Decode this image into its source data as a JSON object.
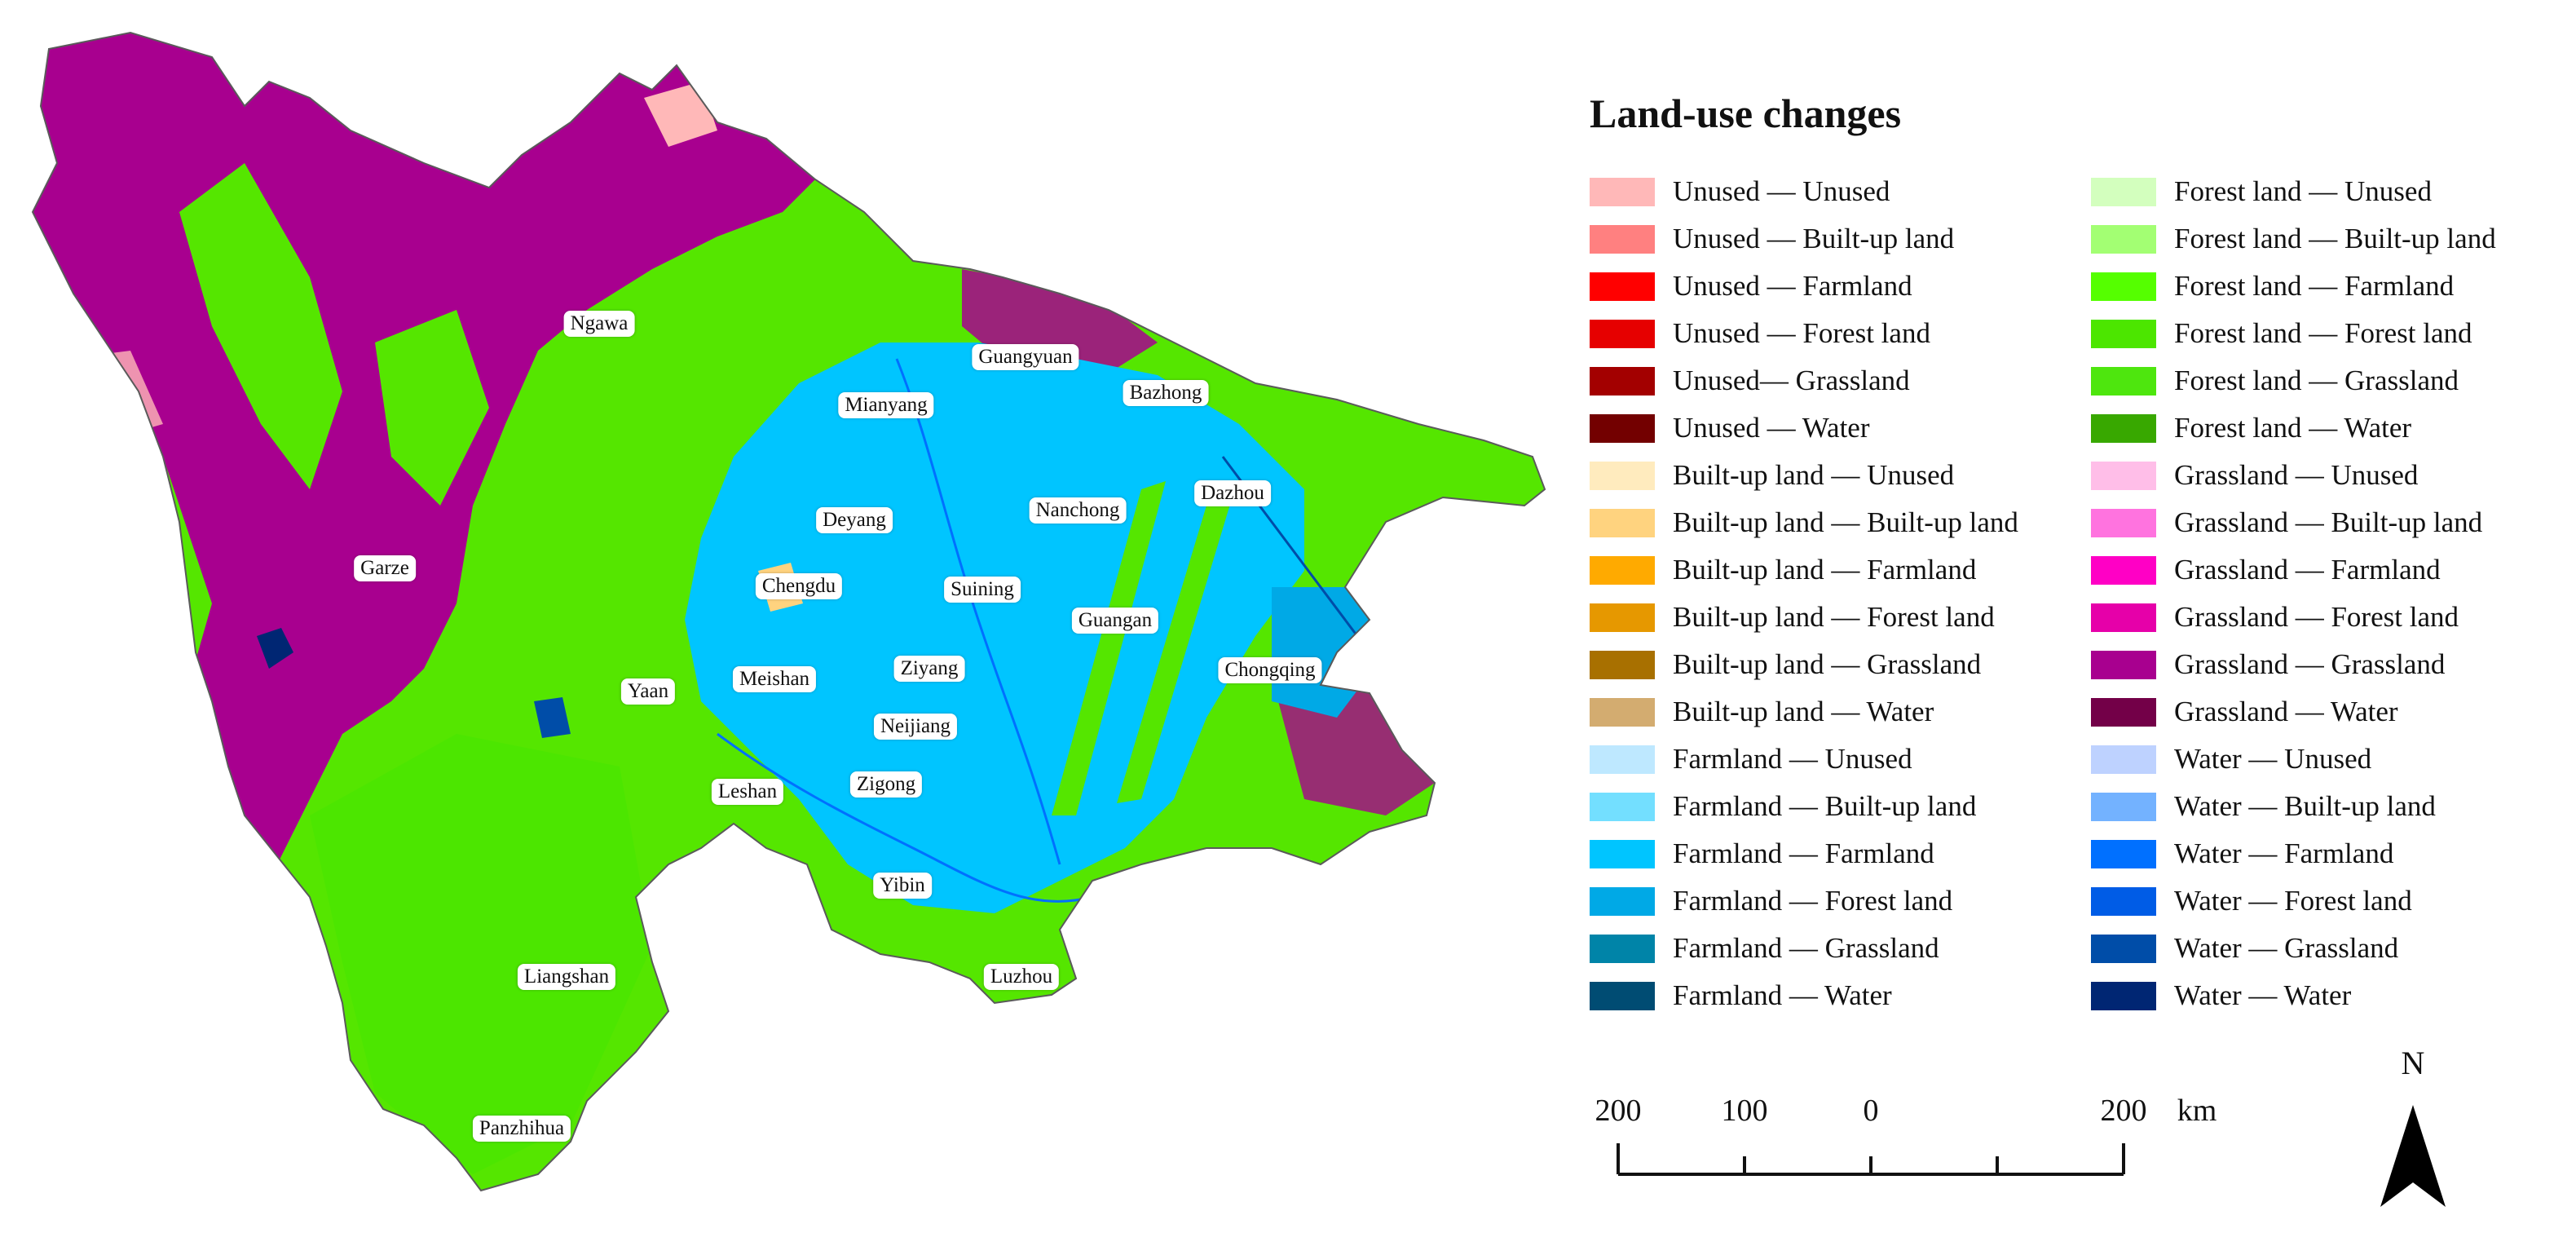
{
  "legend": {
    "title": "Land-use changes",
    "items": [
      {
        "label": "Unused — Unused",
        "color": "#ffb8b8"
      },
      {
        "label": "Unused — Built-up land",
        "color": "#ff8080"
      },
      {
        "label": "Unused — Farmland",
        "color": "#ff0000"
      },
      {
        "label": "Unused — Forest land",
        "color": "#e60000"
      },
      {
        "label": "Unused—  Grassland",
        "color": "#a30000"
      },
      {
        "label": "Unused — Water",
        "color": "#730000"
      },
      {
        "label": "Built-up land — Unused",
        "color": "#ffebbe"
      },
      {
        "label": "Built-up land — Built-up land",
        "color": "#ffd37f"
      },
      {
        "label": "Built-up land — Farmland",
        "color": "#ffaa00"
      },
      {
        "label": "Built-up land — Forest land",
        "color": "#e69800"
      },
      {
        "label": "Built-up land — Grassland",
        "color": "#a87000"
      },
      {
        "label": "Built-up land — Water",
        "color": "#d3ac70"
      },
      {
        "label": "Farmland — Unused",
        "color": "#bee8ff"
      },
      {
        "label": "Farmland — Built-up land",
        "color": "#73dfff"
      },
      {
        "label": "Farmland — Farmland",
        "color": "#00c5ff"
      },
      {
        "label": "Farmland — Forest land",
        "color": "#00a9e6"
      },
      {
        "label": "Farmland — Grassland",
        "color": "#0084a8"
      },
      {
        "label": "Farmland — Water",
        "color": "#004c73"
      },
      {
        "label": "Forest land — Unused",
        "color": "#d3ffbe"
      },
      {
        "label": "Forest land — Built-up land",
        "color": "#a3ff73"
      },
      {
        "label": "Forest land — Farmland",
        "color": "#55ff00"
      },
      {
        "label": "Forest land — Forest land",
        "color": "#4ce600"
      },
      {
        "label": "Forest land — Grassland",
        "color": "#4ee60e"
      },
      {
        "label": "Forest land — Water",
        "color": "#38a800"
      },
      {
        "label": "Grassland — Unused",
        "color": "#ffbee8"
      },
      {
        "label": "Grassland — Built-up land",
        "color": "#ff73df"
      },
      {
        "label": "Grassland — Farmland",
        "color": "#ff00c5"
      },
      {
        "label": "Grassland — Forest land",
        "color": "#e600a9"
      },
      {
        "label": "Grassland — Grassland",
        "color": "#a8008f"
      },
      {
        "label": "Grassland — Water",
        "color": "#730048"
      },
      {
        "label": "Water — Unused",
        "color": "#bed2ff"
      },
      {
        "label": "Water — Built-up land",
        "color": "#73b2ff"
      },
      {
        "label": "Water — Farmland",
        "color": "#0070ff"
      },
      {
        "label": "Water — Forest land",
        "color": "#005ce6"
      },
      {
        "label": "Water — Grassland",
        "color": "#004da8"
      },
      {
        "label": "Water — Water",
        "color": "#002673"
      }
    ]
  },
  "cities": [
    {
      "name": "Ngawa"
    },
    {
      "name": "Guangyuan"
    },
    {
      "name": "Mianyang"
    },
    {
      "name": "Bazhong"
    },
    {
      "name": "Garze"
    },
    {
      "name": "Deyang"
    },
    {
      "name": "Nanchong"
    },
    {
      "name": "Dazhou"
    },
    {
      "name": "Chengdu"
    },
    {
      "name": "Suining"
    },
    {
      "name": "Guangan"
    },
    {
      "name": "Yaan"
    },
    {
      "name": "Meishan"
    },
    {
      "name": "Ziyang"
    },
    {
      "name": "Chongqing"
    },
    {
      "name": "Neijiang"
    },
    {
      "name": "Leshan"
    },
    {
      "name": "Zigong"
    },
    {
      "name": "Yibin"
    },
    {
      "name": "Liangshan"
    },
    {
      "name": "Luzhou"
    },
    {
      "name": "Panzhihua"
    }
  ],
  "scale_bar": {
    "labels": [
      "200",
      "100",
      "0",
      "200"
    ],
    "unit": "km"
  },
  "north_arrow": {
    "label": "N"
  }
}
